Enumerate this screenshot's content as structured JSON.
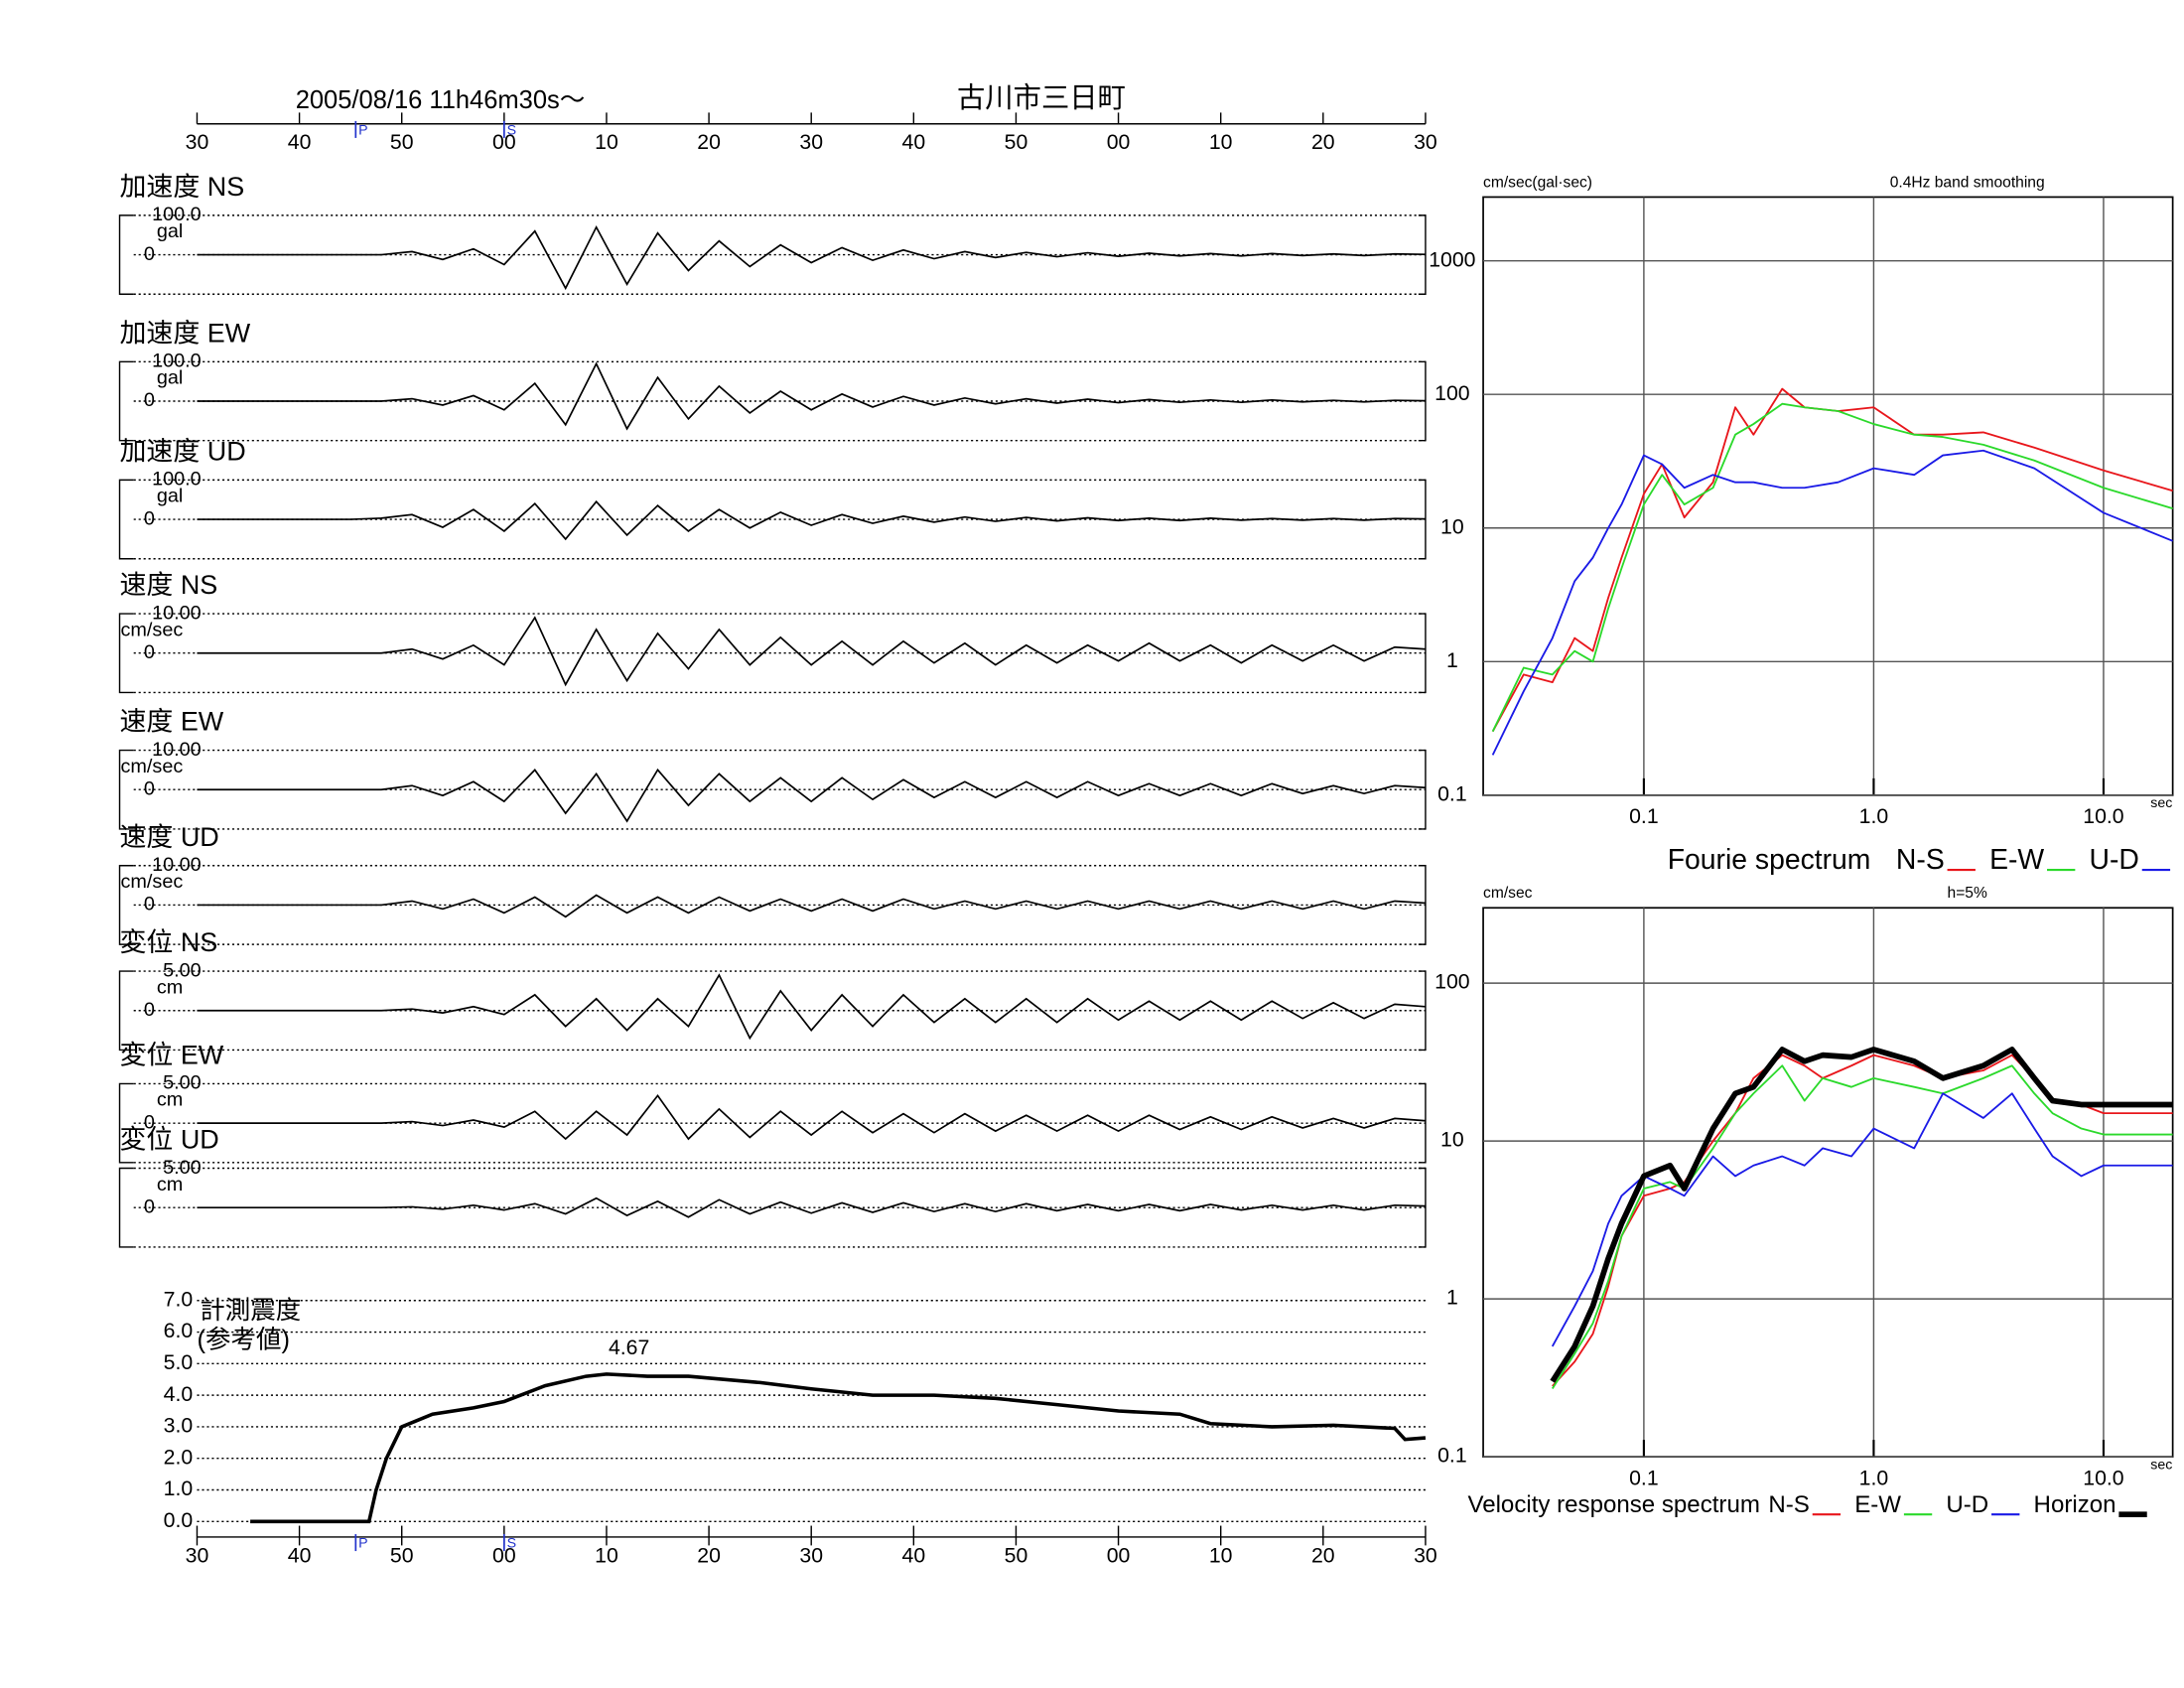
{
  "chart_data": [
    {
      "type": "waveform",
      "title": "2005/08/16  11h46m30s〜",
      "subtitle": "古川市三日町",
      "x": [
        0,
        3,
        6,
        9,
        12,
        15,
        18,
        21,
        24,
        27,
        30,
        33,
        36,
        39,
        42,
        45,
        48,
        51,
        54,
        57,
        60,
        63,
        66,
        69,
        72,
        75,
        78,
        81,
        84,
        87,
        90,
        93,
        96,
        99,
        102,
        105,
        108,
        111,
        114,
        117,
        120
      ],
      "xlim": [
        0,
        120
      ],
      "xticks": [
        {
          "value": 0,
          "label": "30"
        },
        {
          "value": 10,
          "label": "40"
        },
        {
          "value": 20,
          "label": "50"
        },
        {
          "value": 30,
          "label": "00"
        },
        {
          "value": 40,
          "label": "10"
        },
        {
          "value": 50,
          "label": "20"
        },
        {
          "value": 60,
          "label": "30"
        },
        {
          "value": 70,
          "label": "40"
        },
        {
          "value": 80,
          "label": "50"
        },
        {
          "value": 90,
          "label": "00"
        },
        {
          "value": 100,
          "label": "10"
        },
        {
          "value": 110,
          "label": "20"
        },
        {
          "value": 120,
          "label": "30"
        }
      ],
      "phases": [
        {
          "label": "P",
          "value": 15.5
        },
        {
          "label": "S",
          "value": 30
        }
      ],
      "color": "#000000",
      "series": [
        {
          "name": "加速度 NS",
          "unit": "gal",
          "ylim": [
            -100,
            100
          ],
          "yticks": [
            0,
            {
              "value": 100,
              "label": "100.0"
            }
          ],
          "values": [
            0,
            0,
            0,
            0,
            0,
            0,
            0,
            8,
            -12,
            15,
            -25,
            60,
            -85,
            70,
            -75,
            55,
            -40,
            35,
            -30,
            25,
            -20,
            18,
            -14,
            12,
            -10,
            8,
            -7,
            6,
            -5,
            5,
            -4,
            4,
            -3,
            3,
            -3,
            3,
            -2,
            2,
            -2,
            2,
            1
          ]
        },
        {
          "name": "加速度 EW",
          "unit": "gal",
          "ylim": [
            -100,
            100
          ],
          "yticks": [
            0,
            {
              "value": 100,
              "label": "100.0"
            }
          ],
          "values": [
            0,
            0,
            0,
            0,
            0,
            0,
            0,
            6,
            -10,
            14,
            -22,
            45,
            -60,
            95,
            -70,
            60,
            -45,
            38,
            -30,
            25,
            -22,
            18,
            -15,
            12,
            -10,
            8,
            -7,
            6,
            -5,
            5,
            -4,
            4,
            -3,
            3,
            -3,
            3,
            -2,
            2,
            -2,
            2,
            1
          ]
        },
        {
          "name": "加速度 UD",
          "unit": "gal",
          "ylim": [
            -100,
            100
          ],
          "yticks": [
            0,
            {
              "value": 100,
              "label": "100.0"
            }
          ],
          "values": [
            0,
            0,
            0,
            0,
            0,
            0,
            3,
            12,
            -20,
            25,
            -30,
            40,
            -50,
            45,
            -40,
            35,
            -30,
            25,
            -22,
            18,
            -15,
            12,
            -10,
            8,
            -7,
            6,
            -5,
            5,
            -4,
            4,
            -3,
            3,
            -3,
            3,
            -2,
            2,
            -2,
            2,
            -2,
            2,
            1
          ]
        },
        {
          "name": "速度 NS",
          "unit": "cm/sec",
          "ylim": [
            -10,
            10
          ],
          "yticks": [
            0,
            {
              "value": 10,
              "label": "10.00"
            }
          ],
          "values": [
            0,
            0,
            0,
            0,
            0,
            0,
            0,
            1,
            -1.5,
            2,
            -3,
            9,
            -8,
            6,
            -7,
            5,
            -4,
            6,
            -3,
            4,
            -3,
            3,
            -3,
            3,
            -2.5,
            2.5,
            -3,
            2,
            -2.5,
            2,
            -2,
            2.5,
            -2,
            2,
            -2.5,
            2,
            -2,
            2,
            -2,
            1.5,
            1
          ]
        },
        {
          "name": "速度 EW",
          "unit": "cm/sec",
          "ylim": [
            -10,
            10
          ],
          "yticks": [
            0,
            {
              "value": 10,
              "label": "10.00"
            }
          ],
          "values": [
            0,
            0,
            0,
            0,
            0,
            0,
            0,
            1,
            -1.5,
            2,
            -3,
            5,
            -6,
            4,
            -8,
            5,
            -4,
            4,
            -3,
            3,
            -3,
            3,
            -2.5,
            2.5,
            -2,
            2,
            -2,
            2,
            -2,
            2,
            -1.5,
            1.5,
            -1.5,
            1.5,
            -1.5,
            1.5,
            -1,
            1,
            -1,
            1,
            0.5
          ]
        },
        {
          "name": "速度 UD",
          "unit": "cm/sec",
          "ylim": [
            -10,
            10
          ],
          "yticks": [
            0,
            {
              "value": 10,
              "label": "10.00"
            }
          ],
          "values": [
            0,
            0,
            0,
            0,
            0,
            0,
            0,
            1,
            -1,
            1.5,
            -2,
            2,
            -3,
            2.5,
            -2,
            2,
            -2,
            2,
            -1.5,
            1.5,
            -1.5,
            1.5,
            -1.5,
            1.5,
            -1,
            1,
            -1,
            1,
            -1,
            1,
            -1,
            1,
            -1,
            1,
            -1,
            1,
            -1,
            1,
            -1,
            1,
            0.5
          ]
        },
        {
          "name": "変位 NS",
          "unit": "cm",
          "ylim": [
            -5,
            5
          ],
          "yticks": [
            0,
            {
              "value": 5,
              "label": "5.00"
            }
          ],
          "values": [
            0,
            0,
            0,
            0,
            0,
            0,
            0,
            0.2,
            -0.3,
            0.5,
            -0.5,
            2,
            -2,
            1.5,
            -2.5,
            1.5,
            -2,
            4.5,
            -3.5,
            2.5,
            -2.5,
            2,
            -2,
            2,
            -1.5,
            1.5,
            -1.5,
            1.5,
            -1.5,
            1.5,
            -1.2,
            1.2,
            -1.2,
            1.2,
            -1.2,
            1.2,
            -1,
            1,
            -1,
            0.8,
            0.5
          ]
        },
        {
          "name": "変位 EW",
          "unit": "cm",
          "ylim": [
            -5,
            5
          ],
          "yticks": [
            0,
            {
              "value": 5,
              "label": "5.00"
            }
          ],
          "values": [
            0,
            0,
            0,
            0,
            0,
            0,
            0,
            0.2,
            -0.3,
            0.4,
            -0.5,
            1.5,
            -2,
            1.5,
            -1.5,
            3.5,
            -2,
            1.8,
            -1.8,
            1.5,
            -1.5,
            1.5,
            -1.2,
            1.2,
            -1.2,
            1.2,
            -1,
            1,
            -1,
            1,
            -1,
            1,
            -0.8,
            0.8,
            -0.8,
            0.8,
            -0.6,
            0.6,
            -0.6,
            0.6,
            0.3
          ]
        },
        {
          "name": "変位 UD",
          "unit": "cm",
          "ylim": [
            -5,
            5
          ],
          "yticks": [
            0,
            {
              "value": 5,
              "label": "5.00"
            }
          ],
          "values": [
            0,
            0,
            0,
            0,
            0,
            0,
            0,
            0.1,
            -0.2,
            0.3,
            -0.3,
            0.5,
            -0.8,
            1.2,
            -1,
            0.8,
            -1.2,
            1,
            -0.8,
            0.7,
            -0.7,
            0.6,
            -0.6,
            0.6,
            -0.5,
            0.5,
            -0.5,
            0.5,
            -0.4,
            0.4,
            -0.4,
            0.4,
            -0.4,
            0.4,
            -0.3,
            0.3,
            -0.3,
            0.3,
            -0.3,
            0.3,
            0.2
          ]
        }
      ]
    },
    {
      "type": "line",
      "title": "計測震度",
      "subtitle": "(参考値)",
      "x": [
        5.2,
        16.8,
        17.5,
        18.5,
        20,
        23,
        27,
        30,
        34,
        38,
        40,
        44,
        48,
        55,
        60,
        66,
        72,
        78,
        84,
        90,
        96,
        99,
        105,
        111,
        117,
        118,
        120
      ],
      "values": [
        0,
        0,
        1,
        2,
        3,
        3.4,
        3.6,
        3.8,
        4.3,
        4.6,
        4.67,
        4.6,
        4.6,
        4.4,
        4.2,
        4.0,
        4.0,
        3.9,
        3.7,
        3.5,
        3.4,
        3.1,
        3.0,
        3.05,
        2.95,
        2.6,
        2.65
      ],
      "peak": {
        "x": 40,
        "value": 4.67
      },
      "color": "#000000",
      "xlim": [
        0,
        120
      ],
      "xticks": [
        {
          "value": 0,
          "label": "30"
        },
        {
          "value": 10,
          "label": "40"
        },
        {
          "value": 20,
          "label": "50"
        },
        {
          "value": 30,
          "label": "00"
        },
        {
          "value": 40,
          "label": "10"
        },
        {
          "value": 50,
          "label": "20"
        },
        {
          "value": 60,
          "label": "30"
        },
        {
          "value": 70,
          "label": "40"
        },
        {
          "value": 80,
          "label": "50"
        },
        {
          "value": 90,
          "label": "00"
        },
        {
          "value": 100,
          "label": "10"
        },
        {
          "value": 110,
          "label": "20"
        },
        {
          "value": 120,
          "label": "30"
        }
      ],
      "phases": [
        {
          "label": "P",
          "value": 15.5
        },
        {
          "label": "S",
          "value": 30
        }
      ],
      "ylim": [
        0,
        7
      ],
      "yticks": [
        {
          "value": 0,
          "label": "0.0"
        },
        {
          "value": 1,
          "label": "1.0"
        },
        {
          "value": 2,
          "label": "2.0"
        },
        {
          "value": 3,
          "label": "3.0"
        },
        {
          "value": 4,
          "label": "4.0"
        },
        {
          "value": 5,
          "label": "5.0"
        },
        {
          "value": 6,
          "label": "6.0"
        },
        {
          "value": 7,
          "label": "7.0"
        }
      ],
      "grid": true
    },
    {
      "type": "line",
      "title": "Fourie spectrum",
      "y_label": "cm/sec(gal·sec)",
      "note": "0.4Hz band smoothing",
      "x_label": "sec",
      "log_x": true,
      "log_y": true,
      "grid": true,
      "xlim": [
        0.02,
        20
      ],
      "ylim": [
        0.1,
        3000
      ],
      "xticks": [
        0.1,
        {
          "value": 1,
          "label": "1.0"
        },
        {
          "value": 10,
          "label": "10.0"
        }
      ],
      "yticks": [
        0.1,
        1,
        10,
        100,
        1000
      ],
      "x": [
        0.022,
        0.03,
        0.04,
        0.05,
        0.06,
        0.07,
        0.08,
        0.1,
        0.12,
        0.15,
        0.2,
        0.25,
        0.3,
        0.4,
        0.5,
        0.7,
        1,
        1.5,
        2,
        3,
        5,
        10,
        20
      ],
      "series": [
        {
          "name": "N-S",
          "color": "#e8161b",
          "values": [
            0.3,
            0.8,
            0.7,
            1.5,
            1.2,
            3,
            6,
            18,
            30,
            12,
            22,
            80,
            50,
            110,
            80,
            75,
            80,
            50,
            50,
            52,
            40,
            27,
            19
          ]
        },
        {
          "name": "E-W",
          "color": "#2bd92b",
          "values": [
            0.3,
            0.9,
            0.8,
            1.2,
            1.0,
            2.5,
            5,
            15,
            25,
            15,
            20,
            50,
            60,
            85,
            80,
            75,
            60,
            50,
            48,
            42,
            32,
            20,
            14
          ]
        },
        {
          "name": "U-D",
          "color": "#1a1ae6",
          "values": [
            0.2,
            0.6,
            1.5,
            4,
            6,
            10,
            15,
            35,
            30,
            20,
            25,
            22,
            22,
            20,
            20,
            22,
            28,
            25,
            35,
            38,
            28,
            13,
            8
          ]
        }
      ]
    },
    {
      "type": "line",
      "title": "Velocity response spectrum",
      "y_label": "cm/sec",
      "note": "h=5%",
      "x_label": "sec",
      "log_x": true,
      "log_y": true,
      "grid": true,
      "xlim": [
        0.02,
        20
      ],
      "ylim": [
        0.1,
        300
      ],
      "xticks": [
        0.1,
        {
          "value": 1,
          "label": "1.0"
        },
        {
          "value": 10,
          "label": "10.0"
        }
      ],
      "yticks": [
        0.1,
        1,
        10,
        100
      ],
      "x": [
        0.04,
        0.05,
        0.06,
        0.07,
        0.08,
        0.1,
        0.13,
        0.15,
        0.2,
        0.25,
        0.3,
        0.4,
        0.5,
        0.6,
        0.8,
        1,
        1.5,
        2,
        3,
        4,
        5,
        6,
        8,
        10,
        20
      ],
      "series": [
        {
          "name": "N-S",
          "color": "#e8161b",
          "values": [
            0.28,
            0.4,
            0.6,
            1.2,
            2.5,
            4.5,
            5,
            5.5,
            10,
            15,
            25,
            35,
            30,
            25,
            30,
            35,
            30,
            25,
            28,
            35,
            25,
            18,
            17,
            15,
            15
          ]
        },
        {
          "name": "E-W",
          "color": "#2bd92b",
          "values": [
            0.27,
            0.45,
            0.7,
            1.3,
            2.5,
            5,
            5.5,
            5,
            9,
            15,
            20,
            30,
            18,
            25,
            22,
            25,
            22,
            20,
            25,
            30,
            20,
            15,
            12,
            11,
            11
          ]
        },
        {
          "name": "U-D",
          "color": "#1a1ae6",
          "values": [
            0.5,
            0.9,
            1.5,
            3,
            4.5,
            6,
            5,
            4.5,
            8,
            6,
            7,
            8,
            7,
            9,
            8,
            12,
            9,
            20,
            14,
            20,
            12,
            8,
            6,
            7,
            7
          ]
        },
        {
          "name": "Horizon",
          "color": "#000000",
          "values": [
            0.3,
            0.5,
            0.9,
            1.8,
            3,
            6,
            7,
            5,
            12,
            20,
            22,
            38,
            32,
            35,
            34,
            38,
            32,
            25,
            30,
            38,
            25,
            18,
            17,
            17,
            17
          ]
        }
      ]
    }
  ]
}
